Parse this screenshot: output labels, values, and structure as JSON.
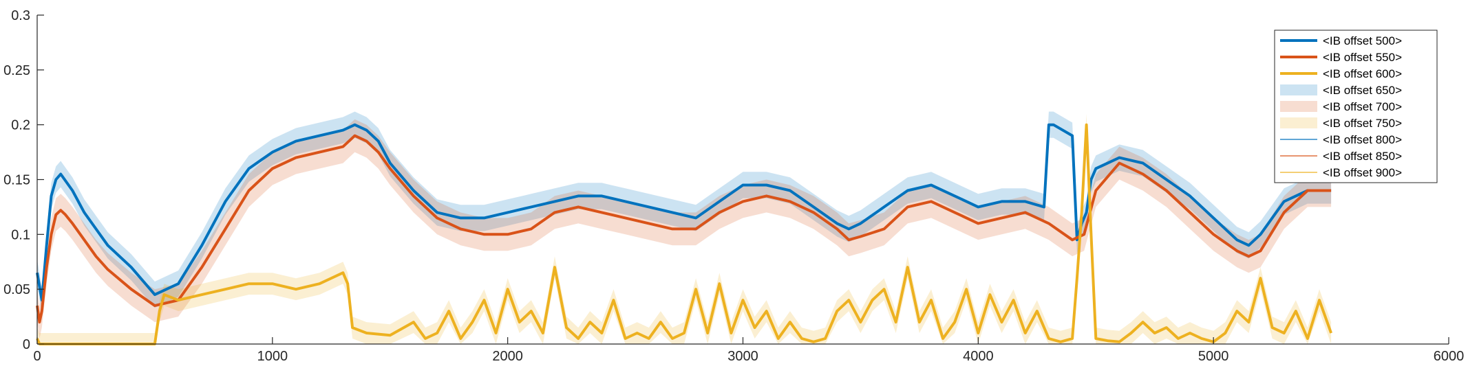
{
  "chart_data": {
    "type": "line",
    "title": "",
    "xlabel": "",
    "ylabel": "",
    "xlim": [
      0,
      6000
    ],
    "ylim": [
      0,
      0.3
    ],
    "xticks": [
      0,
      1000,
      2000,
      3000,
      4000,
      5000,
      6000
    ],
    "xtick_labels": [
      "0",
      "1000",
      "2000",
      "3000",
      "4000",
      "5000",
      "6000"
    ],
    "yticks": [
      0,
      0.05,
      0.1,
      0.15,
      0.2,
      0.25,
      0.3
    ],
    "ytick_labels": [
      "0",
      "0.05",
      "0.1",
      "0.15",
      "0.2",
      "0.25",
      "0.3"
    ],
    "grid": false,
    "legend_position": "top-right",
    "legend": [
      {
        "label": "<IB offset 500>",
        "style": "line-thick",
        "color": "#0072BD"
      },
      {
        "label": "<IB offset 550>",
        "style": "line-thick",
        "color": "#D95319"
      },
      {
        "label": "<IB offset 600>",
        "style": "line-thick",
        "color": "#EDB120"
      },
      {
        "label": "<IB offset 650>",
        "style": "band",
        "color": "#0072BD"
      },
      {
        "label": "<IB offset 700>",
        "style": "band",
        "color": "#D95319"
      },
      {
        "label": "<IB offset 750>",
        "style": "band",
        "color": "#EDB120"
      },
      {
        "label": "<IB offset 800>",
        "style": "line-thin",
        "color": "#0072BD"
      },
      {
        "label": "<IB offset 850>",
        "style": "line-thin",
        "color": "#D95319"
      },
      {
        "label": "<IB offset 900>",
        "style": "line-thin",
        "color": "#EDB120"
      }
    ],
    "series": [
      {
        "color": "#0072BD",
        "band_halfwidth": 0.012,
        "x": [
          0,
          20,
          40,
          60,
          80,
          100,
          150,
          200,
          250,
          300,
          400,
          500,
          600,
          700,
          800,
          900,
          1000,
          1100,
          1200,
          1300,
          1350,
          1400,
          1450,
          1500,
          1600,
          1700,
          1800,
          1900,
          2000,
          2100,
          2200,
          2300,
          2400,
          2500,
          2600,
          2700,
          2800,
          2900,
          3000,
          3100,
          3200,
          3300,
          3400,
          3450,
          3500,
          3600,
          3700,
          3800,
          3900,
          4000,
          4100,
          4200,
          4280,
          4300,
          4320,
          4400,
          4420,
          4440,
          4460,
          4480,
          4500,
          4600,
          4700,
          4800,
          4900,
          5000,
          5100,
          5150,
          5200,
          5300,
          5400,
          5500
        ],
        "y": [
          0.065,
          0.04,
          0.09,
          0.135,
          0.15,
          0.155,
          0.14,
          0.12,
          0.105,
          0.09,
          0.07,
          0.045,
          0.055,
          0.09,
          0.13,
          0.16,
          0.175,
          0.185,
          0.19,
          0.195,
          0.2,
          0.195,
          0.185,
          0.165,
          0.14,
          0.12,
          0.115,
          0.115,
          0.12,
          0.125,
          0.13,
          0.135,
          0.135,
          0.13,
          0.125,
          0.12,
          0.115,
          0.13,
          0.145,
          0.145,
          0.14,
          0.125,
          0.11,
          0.105,
          0.11,
          0.125,
          0.14,
          0.145,
          0.135,
          0.125,
          0.13,
          0.13,
          0.125,
          0.2,
          0.2,
          0.19,
          0.095,
          0.11,
          0.12,
          0.15,
          0.16,
          0.17,
          0.165,
          0.15,
          0.135,
          0.115,
          0.095,
          0.09,
          0.1,
          0.13,
          0.14,
          0.14
        ]
      },
      {
        "color": "#D95319",
        "band_halfwidth": 0.015,
        "x": [
          0,
          10,
          20,
          40,
          60,
          80,
          100,
          120,
          150,
          200,
          250,
          300,
          400,
          500,
          600,
          700,
          800,
          900,
          1000,
          1100,
          1200,
          1300,
          1350,
          1400,
          1450,
          1500,
          1600,
          1700,
          1800,
          1900,
          2000,
          2100,
          2200,
          2300,
          2400,
          2500,
          2600,
          2700,
          2800,
          2900,
          3000,
          3100,
          3200,
          3300,
          3400,
          3450,
          3500,
          3600,
          3700,
          3800,
          3900,
          4000,
          4100,
          4200,
          4300,
          4400,
          4450,
          4500,
          4600,
          4700,
          4800,
          4900,
          5000,
          5100,
          5150,
          5200,
          5300,
          5400,
          5500
        ],
        "y": [
          0.035,
          0.02,
          0.03,
          0.07,
          0.1,
          0.118,
          0.122,
          0.118,
          0.11,
          0.095,
          0.08,
          0.068,
          0.05,
          0.035,
          0.04,
          0.07,
          0.105,
          0.14,
          0.16,
          0.17,
          0.175,
          0.18,
          0.19,
          0.185,
          0.175,
          0.16,
          0.135,
          0.115,
          0.105,
          0.1,
          0.1,
          0.105,
          0.12,
          0.125,
          0.12,
          0.115,
          0.11,
          0.105,
          0.105,
          0.12,
          0.13,
          0.135,
          0.13,
          0.12,
          0.105,
          0.095,
          0.098,
          0.105,
          0.125,
          0.13,
          0.12,
          0.11,
          0.115,
          0.12,
          0.11,
          0.095,
          0.1,
          0.14,
          0.165,
          0.155,
          0.14,
          0.12,
          0.1,
          0.085,
          0.08,
          0.085,
          0.12,
          0.14,
          0.14
        ]
      },
      {
        "color": "#EDB120",
        "band_halfwidth": 0.01,
        "x": [
          0,
          10,
          500,
          520,
          540,
          600,
          700,
          800,
          900,
          1000,
          1100,
          1200,
          1250,
          1300,
          1320,
          1340,
          1400,
          1500,
          1600,
          1650,
          1700,
          1750,
          1800,
          1850,
          1900,
          1950,
          2000,
          2050,
          2100,
          2150,
          2200,
          2250,
          2300,
          2350,
          2400,
          2450,
          2500,
          2550,
          2600,
          2650,
          2700,
          2750,
          2800,
          2850,
          2900,
          2950,
          3000,
          3050,
          3100,
          3150,
          3200,
          3250,
          3300,
          3350,
          3400,
          3450,
          3500,
          3550,
          3600,
          3650,
          3700,
          3750,
          3800,
          3850,
          3900,
          3950,
          4000,
          4050,
          4100,
          4150,
          4200,
          4250,
          4300,
          4350,
          4400,
          4420,
          4440,
          4460,
          4480,
          4500,
          4550,
          4600,
          4650,
          4700,
          4750,
          4800,
          4850,
          4900,
          4950,
          5000,
          5050,
          5100,
          5150,
          5200,
          5250,
          5300,
          5350,
          5400,
          5450,
          5500
        ],
        "y": [
          0.005,
          0.0,
          0.0,
          0.03,
          0.045,
          0.04,
          0.045,
          0.05,
          0.055,
          0.055,
          0.05,
          0.055,
          0.06,
          0.065,
          0.055,
          0.015,
          0.01,
          0.008,
          0.02,
          0.005,
          0.01,
          0.03,
          0.005,
          0.02,
          0.04,
          0.01,
          0.05,
          0.02,
          0.03,
          0.01,
          0.07,
          0.015,
          0.005,
          0.02,
          0.01,
          0.04,
          0.005,
          0.01,
          0.005,
          0.02,
          0.005,
          0.01,
          0.05,
          0.01,
          0.055,
          0.01,
          0.04,
          0.015,
          0.03,
          0.005,
          0.02,
          0.005,
          0.002,
          0.005,
          0.03,
          0.04,
          0.02,
          0.04,
          0.05,
          0.02,
          0.07,
          0.02,
          0.04,
          0.005,
          0.02,
          0.05,
          0.01,
          0.045,
          0.02,
          0.04,
          0.01,
          0.03,
          0.005,
          0.002,
          0.005,
          0.06,
          0.12,
          0.2,
          0.1,
          0.005,
          0.003,
          0.002,
          0.01,
          0.02,
          0.01,
          0.015,
          0.005,
          0.01,
          0.005,
          0.002,
          0.01,
          0.03,
          0.02,
          0.06,
          0.015,
          0.01,
          0.03,
          0.005,
          0.04,
          0.01
        ]
      }
    ]
  }
}
